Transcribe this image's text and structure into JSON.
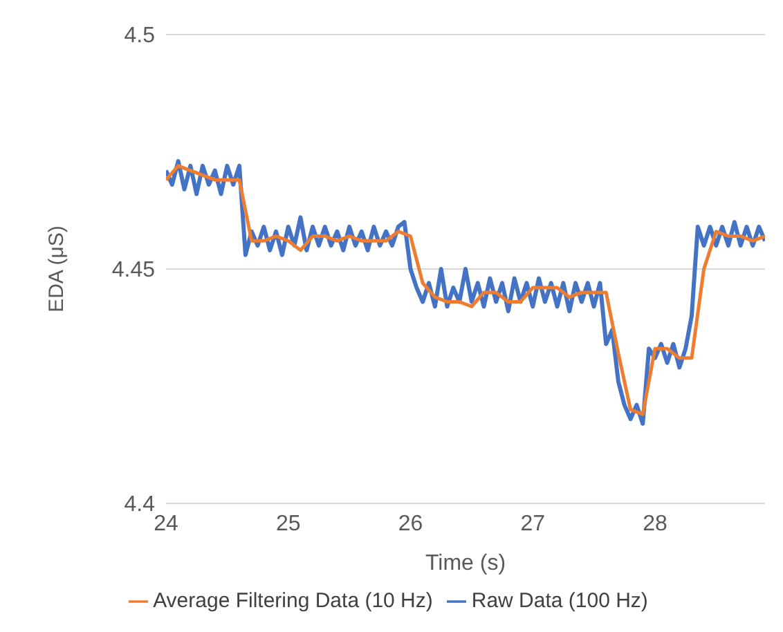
{
  "chart_data": {
    "type": "line",
    "xlabel": "Time (s)",
    "ylabel": "EDA (μS)",
    "xlim": [
      24,
      28.9
    ],
    "xticks": [
      24,
      25,
      26,
      27,
      28
    ],
    "ylim": [
      4.4,
      4.5
    ],
    "yticks": [
      4.4,
      4.45,
      4.5
    ],
    "grid": "y",
    "legend": "bottom",
    "marker": "none",
    "line_style": "solid",
    "series": [
      {
        "name": "Raw Data (100 Hz)",
        "color": "#4472c4",
        "x": [
          24.0,
          24.05,
          24.1,
          24.15,
          24.2,
          24.25,
          24.3,
          24.35,
          24.4,
          24.45,
          24.5,
          24.55,
          24.6,
          24.65,
          24.7,
          24.75,
          24.8,
          24.85,
          24.9,
          24.95,
          25.0,
          25.05,
          25.1,
          25.15,
          25.2,
          25.25,
          25.3,
          25.35,
          25.4,
          25.45,
          25.5,
          25.55,
          25.6,
          25.65,
          25.7,
          25.75,
          25.8,
          25.85,
          25.9,
          25.95,
          26.0,
          26.05,
          26.1,
          26.15,
          26.2,
          26.25,
          26.3,
          26.35,
          26.4,
          26.45,
          26.5,
          26.55,
          26.6,
          26.65,
          26.7,
          26.75,
          26.8,
          26.85,
          26.9,
          26.95,
          27.0,
          27.05,
          27.1,
          27.15,
          27.2,
          27.25,
          27.3,
          27.35,
          27.4,
          27.45,
          27.5,
          27.55,
          27.6,
          27.65,
          27.7,
          27.75,
          27.8,
          27.85,
          27.9,
          27.95,
          28.0,
          28.05,
          28.1,
          28.15,
          28.2,
          28.25,
          28.3,
          28.35,
          28.4,
          28.45,
          28.5,
          28.55,
          28.6,
          28.65,
          28.7,
          28.75,
          28.8,
          28.85,
          28.9
        ],
        "values": [
          4.471,
          4.468,
          4.473,
          4.467,
          4.472,
          4.466,
          4.472,
          4.468,
          4.471,
          4.466,
          4.472,
          4.468,
          4.472,
          4.453,
          4.458,
          4.455,
          4.459,
          4.454,
          4.458,
          4.453,
          4.459,
          4.455,
          4.461,
          4.454,
          4.459,
          4.455,
          4.459,
          4.455,
          4.458,
          4.454,
          4.459,
          4.455,
          4.458,
          4.454,
          4.459,
          4.455,
          4.458,
          4.455,
          4.459,
          4.46,
          4.45,
          4.446,
          4.443,
          4.447,
          4.442,
          4.45,
          4.442,
          4.446,
          4.443,
          4.45,
          4.443,
          4.447,
          4.442,
          4.448,
          4.443,
          4.447,
          4.441,
          4.448,
          4.443,
          4.447,
          4.442,
          4.448,
          4.443,
          4.447,
          4.442,
          4.447,
          4.441,
          4.447,
          4.443,
          4.447,
          4.442,
          4.447,
          4.434,
          4.437,
          4.426,
          4.421,
          4.418,
          4.421,
          4.417,
          4.433,
          4.431,
          4.434,
          4.43,
          4.434,
          4.429,
          4.433,
          4.44,
          4.459,
          4.455,
          4.459,
          4.455,
          4.459,
          4.455,
          4.46,
          4.455,
          4.459,
          4.455,
          4.459,
          4.456
        ]
      },
      {
        "name": "Average Filtering Data (10 Hz)",
        "color": "#ed7d31",
        "x": [
          24.0,
          24.1,
          24.2,
          24.3,
          24.4,
          24.5,
          24.6,
          24.7,
          24.8,
          24.9,
          25.0,
          25.1,
          25.2,
          25.3,
          25.4,
          25.5,
          25.6,
          25.7,
          25.8,
          25.9,
          26.0,
          26.1,
          26.2,
          26.3,
          26.4,
          26.5,
          26.6,
          26.7,
          26.8,
          26.9,
          27.0,
          27.1,
          27.2,
          27.3,
          27.4,
          27.5,
          27.6,
          27.7,
          27.8,
          27.9,
          28.0,
          28.1,
          28.2,
          28.3,
          28.4,
          28.5,
          28.6,
          28.7,
          28.8,
          28.9
        ],
        "values": [
          4.469,
          4.472,
          4.471,
          4.47,
          4.469,
          4.469,
          4.469,
          4.456,
          4.456,
          4.457,
          4.456,
          4.454,
          4.457,
          4.457,
          4.456,
          4.457,
          4.456,
          4.456,
          4.456,
          4.458,
          4.457,
          4.447,
          4.444,
          4.443,
          4.443,
          4.442,
          4.445,
          4.445,
          4.443,
          4.443,
          4.446,
          4.446,
          4.446,
          4.444,
          4.445,
          4.445,
          4.445,
          4.432,
          4.42,
          4.419,
          4.433,
          4.433,
          4.431,
          4.431,
          4.45,
          4.458,
          4.457,
          4.457,
          4.456,
          4.457
        ]
      }
    ]
  }
}
